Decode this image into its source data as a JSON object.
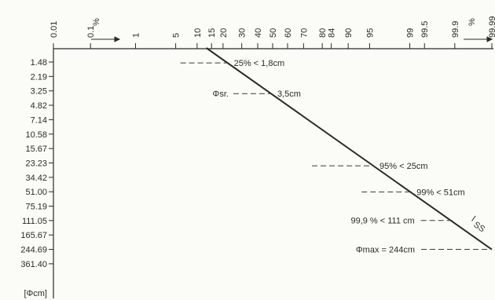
{
  "chart_data": {
    "type": "line",
    "x_axis": {
      "scale": "probability",
      "unit_label": "%",
      "ticks": [
        "0.01",
        "0.1",
        "1",
        "5",
        "10",
        "15",
        "20",
        "30",
        "40",
        "50",
        "60",
        "70",
        "80",
        "84",
        "90",
        "95",
        "99",
        "99.5",
        "99.9",
        "99.99"
      ]
    },
    "y_axis": {
      "unit_label": "[Φcm]",
      "ticks": [
        "1.48",
        "2.19",
        "3.25",
        "4.82",
        "7.14",
        "10.58",
        "15.67",
        "23.23",
        "34.42",
        "51.00",
        "75.19",
        "111.05",
        "165.67",
        "244.69",
        "361.40"
      ]
    },
    "series": [
      {
        "label": "SS",
        "points": [
          {
            "percent": 13,
            "size_cm": 1.48
          },
          {
            "percent": 99.99,
            "size_cm": 244.69
          }
        ]
      }
    ],
    "annotations": [
      {
        "text": "25% < 1,8cm",
        "percent": 25,
        "size_cm": 1.8
      },
      {
        "text_left": "Φsr.",
        "text_right": "3,5cm",
        "percent": 50,
        "size_cm": 3.5
      },
      {
        "text": "95% < 25cm",
        "percent": 95,
        "size_cm": 25
      },
      {
        "text": "99% < 51cm",
        "percent": 99,
        "size_cm": 51
      },
      {
        "text": "99,9 % < 111 cm",
        "percent": 99.9,
        "size_cm": 111
      },
      {
        "text": "Φmax = 244cm",
        "percent": 99.99,
        "size_cm": 244
      }
    ],
    "grid": false,
    "legend": "none"
  }
}
